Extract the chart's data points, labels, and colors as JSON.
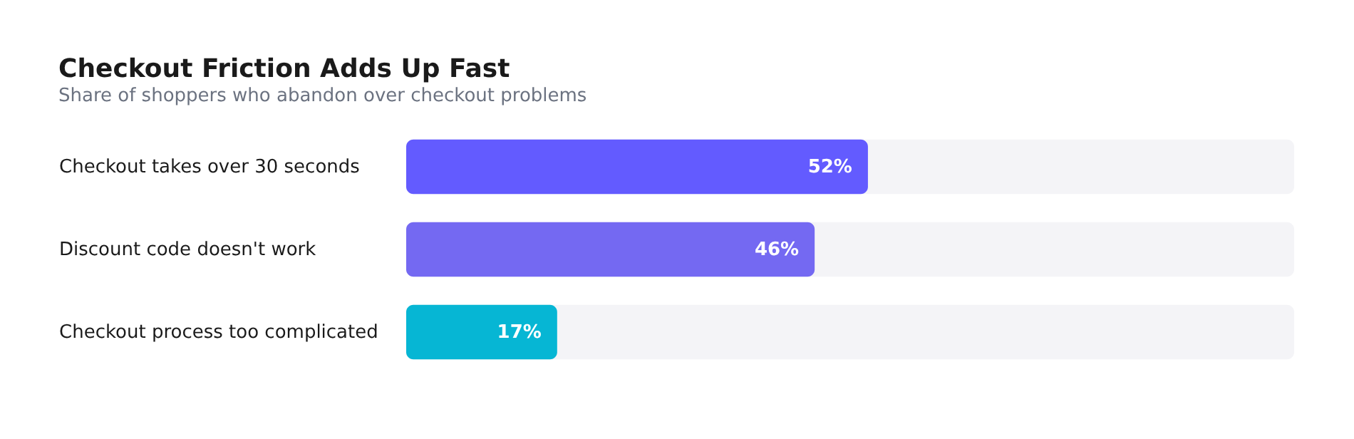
{
  "chart_data": {
    "type": "bar",
    "orientation": "horizontal",
    "title": "Checkout Friction Adds Up Fast",
    "subtitle": "Share of shoppers who abandon over checkout problems",
    "categories": [
      "Checkout takes over 30 seconds",
      "Discount code doesn't work",
      "Checkout process too complicated"
    ],
    "values": [
      52,
      46,
      17
    ],
    "colors": [
      "#635bff",
      "#7469f2",
      "#06b6d4"
    ],
    "xlim": [
      0,
      100
    ],
    "data_labels": true,
    "value_labels": [
      "52%",
      "46%",
      "17%"
    ],
    "grid": false,
    "tick_labels": "y"
  }
}
